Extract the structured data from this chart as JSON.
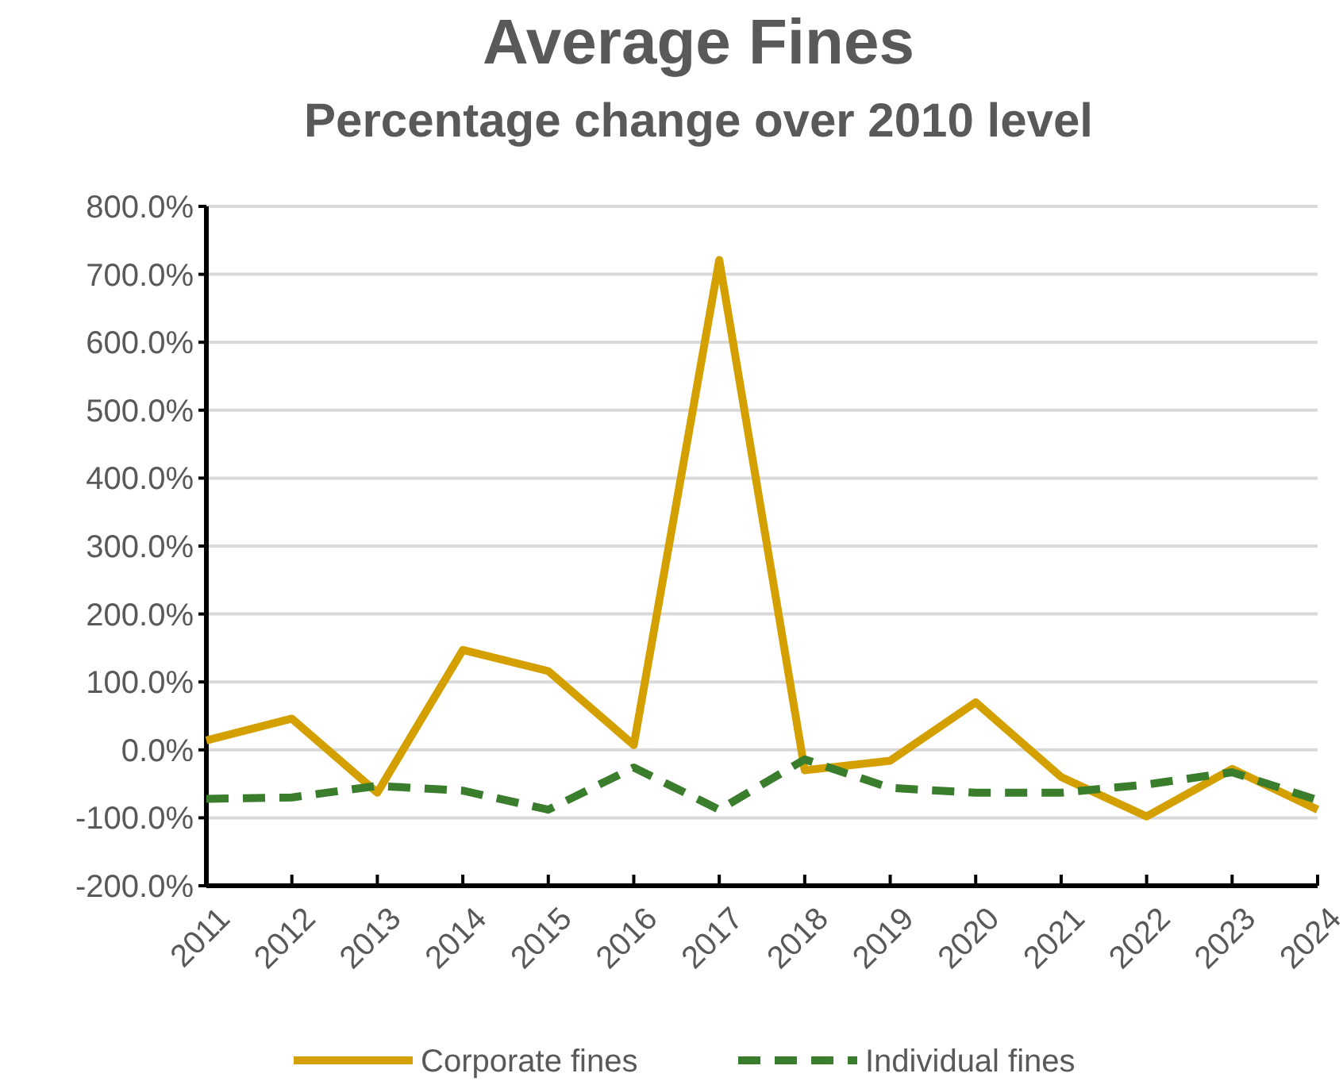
{
  "chart_data": {
    "type": "line",
    "title": "Average Fines",
    "subtitle": "Percentage change over 2010 level",
    "categories": [
      "2011",
      "2012",
      "2013",
      "2014",
      "2015",
      "2016",
      "2017",
      "2018",
      "2019",
      "2020",
      "2021",
      "2022",
      "2023",
      "2024"
    ],
    "series": [
      {
        "name": "Corporate fines",
        "color": "#d4a000",
        "line_style": "solid",
        "values": [
          14,
          46,
          -63,
          147,
          116,
          7,
          721,
          -30,
          -16,
          70,
          -40,
          -98,
          -28,
          -88
        ]
      },
      {
        "name": "Individual fines",
        "color": "#3a7d2c",
        "line_style": "dashed",
        "values": [
          -72,
          -70,
          -53,
          -60,
          -88,
          -26,
          -88,
          -14,
          -56,
          -63,
          -63,
          -51,
          -33,
          -74
        ]
      }
    ],
    "ylim": [
      -200,
      800
    ],
    "yticks": [
      {
        "value": -200,
        "label": "-200.0%"
      },
      {
        "value": -100,
        "label": "-100.0%"
      },
      {
        "value": 0,
        "label": "0.0%"
      },
      {
        "value": 100,
        "label": "100.0%"
      },
      {
        "value": 200,
        "label": "200.0%"
      },
      {
        "value": 300,
        "label": "300.0%"
      },
      {
        "value": 400,
        "label": "400.0%"
      },
      {
        "value": 500,
        "label": "500.0%"
      },
      {
        "value": 600,
        "label": "600.0%"
      },
      {
        "value": 700,
        "label": "700.0%"
      },
      {
        "value": 800,
        "label": "800.0%"
      }
    ],
    "grid": "y",
    "legend": "bottom"
  }
}
